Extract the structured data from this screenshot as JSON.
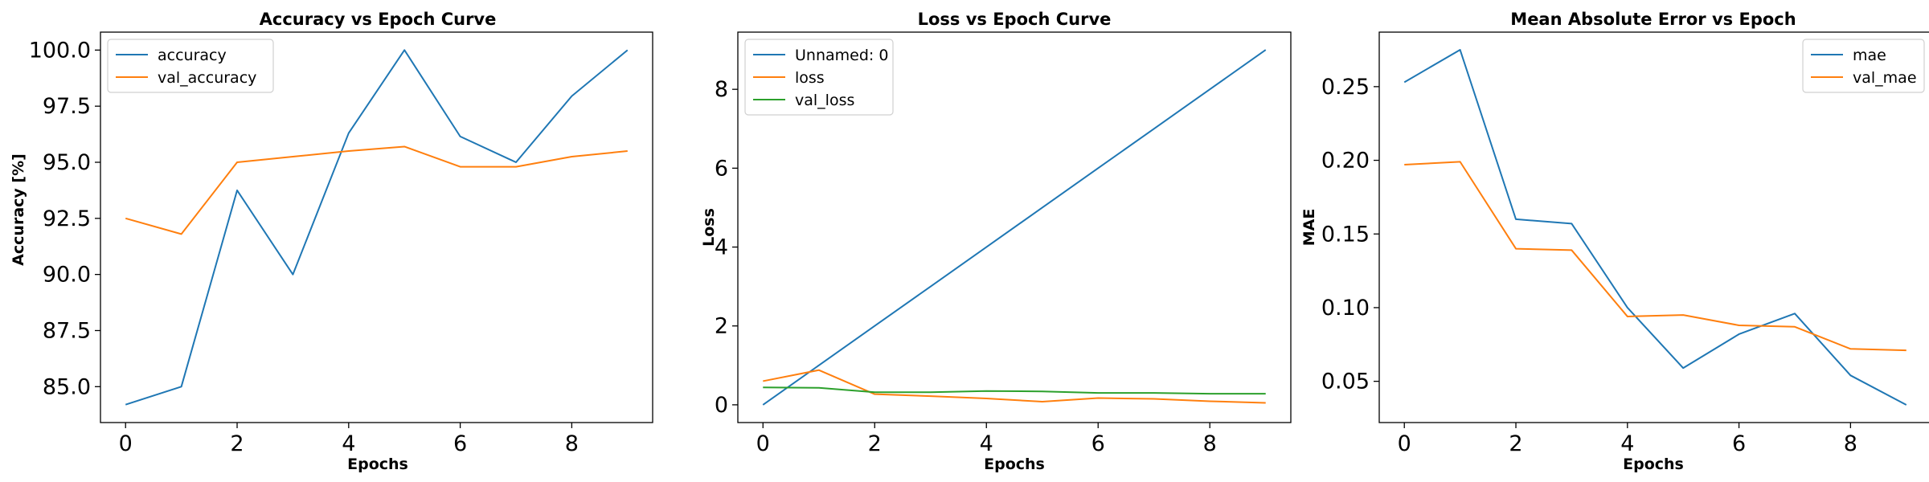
{
  "chart_data": [
    {
      "type": "line",
      "title": "Accuracy vs Epoch Curve",
      "xlabel": "Epochs",
      "ylabel": "Accuracy [%]",
      "x": [
        0,
        1,
        2,
        3,
        4,
        5,
        6,
        7,
        8,
        9
      ],
      "xlim": [
        -0.45,
        9.45
      ],
      "ylim": [
        83.4,
        100.8
      ],
      "xticks": [
        0,
        2,
        4,
        6,
        8
      ],
      "xtick_labels": [
        "0",
        "2",
        "4",
        "6",
        "8"
      ],
      "yticks": [
        85.0,
        87.5,
        90.0,
        92.5,
        95.0,
        97.5,
        100.0
      ],
      "ytick_labels": [
        "85.0",
        "87.5",
        "90.0",
        "92.5",
        "95.0",
        "97.5",
        "100.0"
      ],
      "grid": false,
      "legend_position": "top-left",
      "series": [
        {
          "name": "accuracy",
          "color": "#1f77b4",
          "values": [
            84.2,
            85.0,
            93.75,
            90.0,
            96.3,
            100.0,
            96.15,
            95.0,
            97.95,
            100.0
          ]
        },
        {
          "name": "val_accuracy",
          "color": "#ff7f0e",
          "values": [
            92.5,
            91.8,
            95.0,
            95.25,
            95.5,
            95.7,
            94.8,
            94.8,
            95.25,
            95.5
          ]
        }
      ]
    },
    {
      "type": "line",
      "title": "Loss vs Epoch Curve",
      "xlabel": "Epochs",
      "ylabel": "Loss",
      "x": [
        0,
        1,
        2,
        3,
        4,
        5,
        6,
        7,
        8,
        9
      ],
      "xlim": [
        -0.45,
        9.45
      ],
      "ylim": [
        -0.45,
        9.45
      ],
      "xticks": [
        0,
        2,
        4,
        6,
        8
      ],
      "xtick_labels": [
        "0",
        "2",
        "4",
        "6",
        "8"
      ],
      "yticks": [
        0,
        2,
        4,
        6,
        8
      ],
      "ytick_labels": [
        "0",
        "2",
        "4",
        "6",
        "8"
      ],
      "grid": false,
      "legend_position": "top-left",
      "series": [
        {
          "name": "Unnamed: 0",
          "color": "#1f77b4",
          "values": [
            0,
            1,
            2,
            3,
            4,
            5,
            6,
            7,
            8,
            9
          ]
        },
        {
          "name": "loss",
          "color": "#ff7f0e",
          "values": [
            0.6,
            0.88,
            0.27,
            0.22,
            0.16,
            0.08,
            0.17,
            0.15,
            0.09,
            0.05
          ]
        },
        {
          "name": "val_loss",
          "color": "#2ca02c",
          "values": [
            0.44,
            0.43,
            0.32,
            0.32,
            0.35,
            0.34,
            0.3,
            0.3,
            0.28,
            0.28
          ]
        }
      ]
    },
    {
      "type": "line",
      "title": "Mean Absolute Error vs Epoch",
      "xlabel": "Epochs",
      "ylabel": "MAE",
      "x": [
        0,
        1,
        2,
        3,
        4,
        5,
        6,
        7,
        8,
        9
      ],
      "xlim": [
        -0.45,
        9.45
      ],
      "ylim": [
        0.022,
        0.287
      ],
      "xticks": [
        0,
        2,
        4,
        6,
        8
      ],
      "xtick_labels": [
        "0",
        "2",
        "4",
        "6",
        "8"
      ],
      "yticks": [
        0.05,
        0.1,
        0.15,
        0.2,
        0.25
      ],
      "ytick_labels": [
        "0.05",
        "0.10",
        "0.15",
        "0.20",
        "0.25"
      ],
      "grid": false,
      "legend_position": "top-right",
      "series": [
        {
          "name": "mae",
          "color": "#1f77b4",
          "values": [
            0.253,
            0.275,
            0.16,
            0.157,
            0.1,
            0.059,
            0.082,
            0.096,
            0.054,
            0.034
          ]
        },
        {
          "name": "val_mae",
          "color": "#ff7f0e",
          "values": [
            0.197,
            0.199,
            0.14,
            0.139,
            0.094,
            0.095,
            0.088,
            0.087,
            0.072,
            0.071
          ]
        }
      ]
    }
  ]
}
